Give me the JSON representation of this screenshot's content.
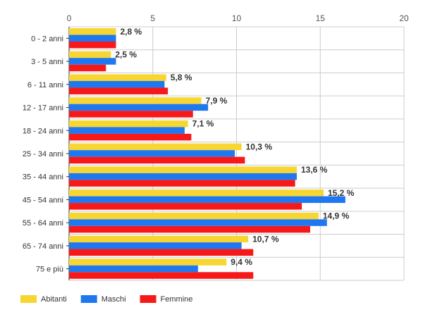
{
  "chart_data": {
    "type": "bar",
    "orientation": "horizontal",
    "categories": [
      "0 - 2 anni",
      "3 - 5 anni",
      "6 - 11 anni",
      "12 - 17 anni",
      "18 - 24 anni",
      "25 - 34 anni",
      "35 - 44 anni",
      "45 - 54 anni",
      "55 - 64 anni",
      "65 - 74 anni",
      "75 e più"
    ],
    "series": [
      {
        "name": "Abitanti",
        "color": "#f7d633",
        "values": [
          2.8,
          2.5,
          5.8,
          7.9,
          7.1,
          10.3,
          13.6,
          15.2,
          14.9,
          10.7,
          9.4
        ]
      },
      {
        "name": "Maschi",
        "color": "#1f78f0",
        "values": [
          2.8,
          2.8,
          5.7,
          8.3,
          6.9,
          9.9,
          13.6,
          16.5,
          15.4,
          10.3,
          7.7
        ]
      },
      {
        "name": "Femmine",
        "color": "#f71919",
        "values": [
          2.8,
          2.2,
          5.9,
          7.4,
          7.3,
          10.5,
          13.5,
          13.9,
          14.4,
          11.0,
          11.0
        ]
      }
    ],
    "data_labels": [
      "2,8 %",
      "2,5 %",
      "5,8 %",
      "7,9 %",
      "7,1 %",
      "10,3 %",
      "13,6 %",
      "15,2 %",
      "14,9 %",
      "10,7 %",
      "9,4 %"
    ],
    "x_ticks": [
      "0",
      "5",
      "10",
      "15",
      "20"
    ],
    "xlim": [
      0,
      20
    ],
    "grid": true,
    "legend_position": "bottom-left",
    "title": "",
    "xlabel": "",
    "ylabel": ""
  }
}
